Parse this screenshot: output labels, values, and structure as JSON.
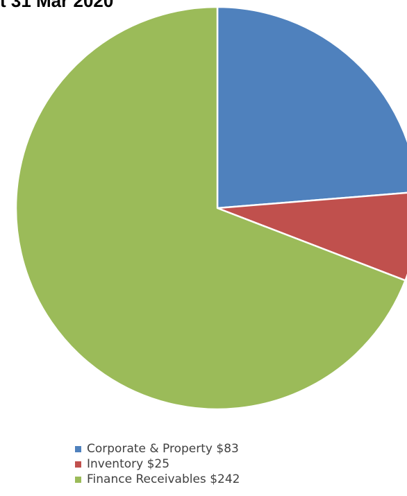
{
  "chart_data": {
    "type": "pie",
    "title": "t 31 Mar 2020",
    "categories": [
      "Corporate & Property",
      "Inventory",
      "Finance Receivables"
    ],
    "values": [
      83,
      25,
      242
    ],
    "colors": [
      "#4f81bd",
      "#c0504d",
      "#9bbb59"
    ],
    "legend_labels": [
      "Corporate & Property  $83",
      "Inventory  $25",
      "Finance Receivables  $242"
    ],
    "legend_position": "bottom",
    "start_angle": "12 o'clock",
    "direction": "clockwise"
  }
}
